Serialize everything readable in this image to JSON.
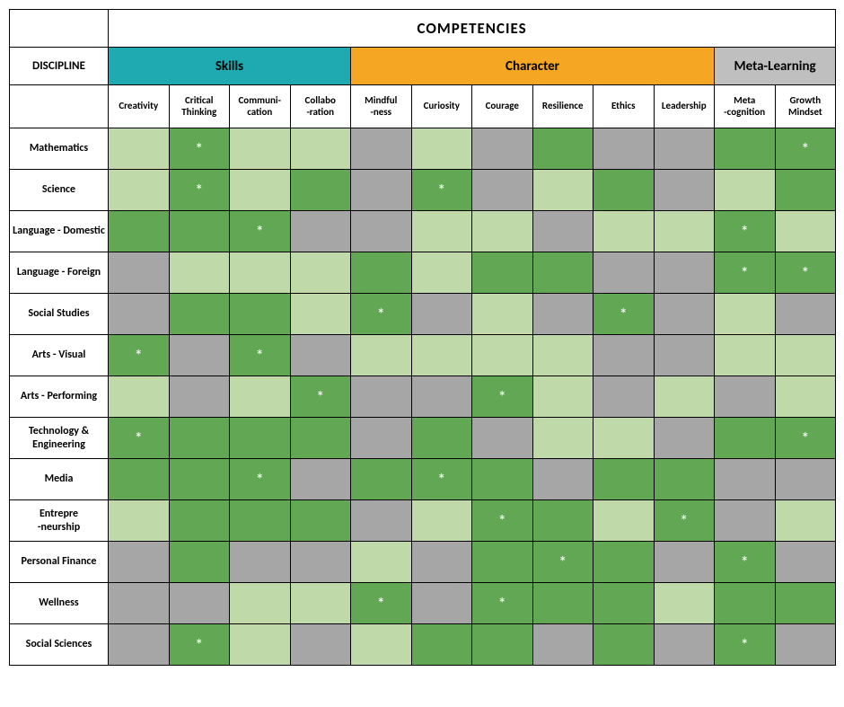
{
  "title": "COMPETENCIES",
  "discipline_label": "DISCIPLINE",
  "groups": [
    {
      "label": "Skills",
      "span": 4,
      "bg": "#1fa9b0",
      "fg": "#000000"
    },
    {
      "label": "Character",
      "span": 6,
      "bg": "#f5a623",
      "fg": "#000000"
    },
    {
      "label": "Meta-Learning",
      "span": 2,
      "bg": "#bfbfbf",
      "fg": "#000000"
    }
  ],
  "columns": [
    "Creativity",
    "Critical Thinking",
    "Communi-\ncation",
    "Collabo\n-ration",
    "Mindful\n-ness",
    "Curiosity",
    "Courage",
    "Resilience",
    "Ethics",
    "Leadership",
    "Meta\n-cognition",
    "Growth Mindset"
  ],
  "colors": {
    "dark": "#62a754",
    "light": "#bfdaa8",
    "gray": "#a6a6a6",
    "border": "#000000"
  },
  "star_glyph": "*",
  "rows": [
    {
      "label": "Mathematics",
      "bold": true,
      "cells": [
        "L",
        "DS",
        "L",
        "L",
        "G",
        "L",
        "G",
        "D",
        "G",
        "G",
        "D",
        "DS"
      ]
    },
    {
      "label": "Science",
      "bold": true,
      "cells": [
        "L",
        "DS",
        "L",
        "D",
        "G",
        "DS",
        "G",
        "L",
        "D",
        "G",
        "L",
        "D"
      ]
    },
    {
      "label": "Language - Domestic",
      "bold": true,
      "cells": [
        "D",
        "D",
        "DS",
        "G",
        "G",
        "L",
        "L",
        "G",
        "L",
        "L",
        "DS",
        "L"
      ]
    },
    {
      "label": "Language - Foreign",
      "bold": true,
      "cells": [
        "G",
        "L",
        "L",
        "L",
        "D",
        "L",
        "D",
        "D",
        "G",
        "G",
        "DS",
        "DS"
      ]
    },
    {
      "label": "Social Studies",
      "bold": true,
      "cells": [
        "G",
        "D",
        "D",
        "L",
        "DS",
        "G",
        "L",
        "G",
        "DS",
        "G",
        "L",
        "G"
      ]
    },
    {
      "label": "Arts - Visual",
      "bold": true,
      "cells": [
        "DS",
        "G",
        "DS",
        "G",
        "L",
        "L",
        "L",
        "L",
        "G",
        "G",
        "L",
        "L"
      ]
    },
    {
      "label": "Arts - Performing",
      "bold": true,
      "cells": [
        "L",
        "G",
        "L",
        "DS",
        "G",
        "G",
        "DS",
        "L",
        "G",
        "L",
        "G",
        "L"
      ]
    },
    {
      "label": "Technology & Engineering",
      "bold": false,
      "cells": [
        "DS",
        "D",
        "D",
        "D",
        "G",
        "D",
        "G",
        "L",
        "L",
        "G",
        "D",
        "DS"
      ]
    },
    {
      "label": "Media",
      "bold": false,
      "cells": [
        "D",
        "D",
        "DS",
        "G",
        "D",
        "DS",
        "D",
        "G",
        "D",
        "D",
        "G",
        "G"
      ]
    },
    {
      "label": "Entrepre\n-neurship",
      "bold": false,
      "cells": [
        "L",
        "D",
        "D",
        "D",
        "G",
        "L",
        "DS",
        "D",
        "L",
        "DS",
        "G",
        "L"
      ]
    },
    {
      "label": "Personal Finance",
      "bold": false,
      "cells": [
        "G",
        "D",
        "G",
        "G",
        "L",
        "G",
        "D",
        "DS",
        "D",
        "G",
        "DS",
        "G"
      ]
    },
    {
      "label": "Wellness",
      "bold": false,
      "cells": [
        "G",
        "G",
        "L",
        "L",
        "DS",
        "G",
        "DS",
        "D",
        "D",
        "L",
        "D",
        "D"
      ]
    },
    {
      "label": "Social Sciences",
      "bold": false,
      "cells": [
        "G",
        "DS",
        "L",
        "G",
        "L",
        "D",
        "D",
        "G",
        "D",
        "G",
        "DS",
        "G"
      ]
    }
  ],
  "legend": {
    "D": "dark-green",
    "DS": "dark-green-star",
    "L": "light-green",
    "G": "gray"
  }
}
